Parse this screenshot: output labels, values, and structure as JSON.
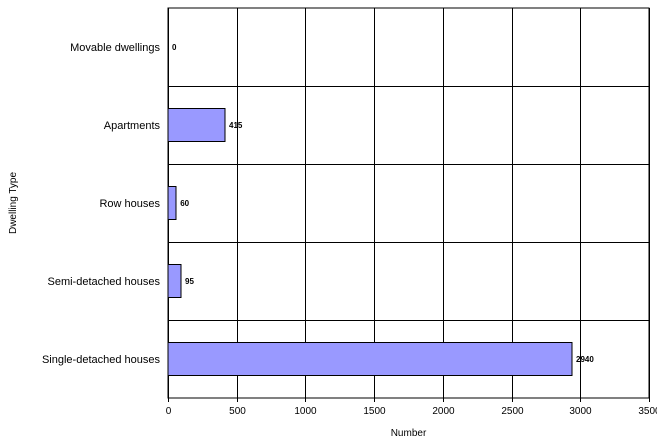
{
  "chart_data": {
    "type": "bar",
    "orientation": "horizontal",
    "categories": [
      "Movable dwellings",
      "Apartments",
      "Row houses",
      "Semi-detached houses",
      "Single-detached houses"
    ],
    "values": [
      0,
      415,
      60,
      95,
      2940
    ],
    "data_labels": [
      "0",
      "415",
      "60",
      "95",
      "2940"
    ],
    "xlabel": "Number",
    "ylabel": "Dwelling Type",
    "xlim": [
      0,
      3500
    ],
    "xticks": [
      0,
      500,
      1000,
      1500,
      2000,
      2500,
      3000,
      3500
    ],
    "grid": true,
    "legend": "none",
    "colors": {
      "bar_fill": "#9999ff",
      "bar_edge": "#000000",
      "grid": "#000000"
    }
  }
}
